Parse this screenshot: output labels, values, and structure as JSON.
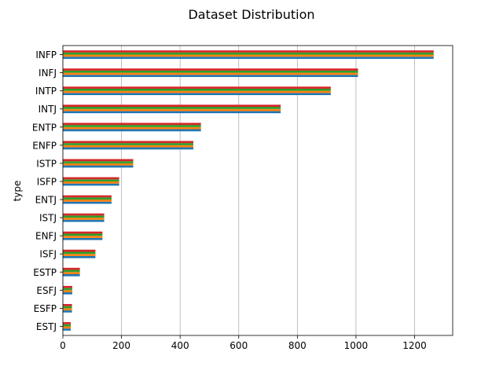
{
  "chart_data": {
    "type": "bar",
    "orientation": "horizontal",
    "title": "Dataset Distribution",
    "xlabel": "",
    "ylabel": "type",
    "categories": [
      "INFP",
      "INFJ",
      "INTP",
      "INTJ",
      "ENTP",
      "ENFP",
      "ISTP",
      "ISFP",
      "ENTJ",
      "ISTJ",
      "ENFJ",
      "ISFJ",
      "ESTP",
      "ESFJ",
      "ESFP",
      "ESTJ"
    ],
    "values": [
      1265,
      1007,
      914,
      743,
      471,
      445,
      240,
      192,
      166,
      141,
      135,
      111,
      58,
      32,
      31,
      27
    ],
    "series_count": 4,
    "series_colors": [
      "#1f77b4",
      "#ff7f0e",
      "#2ca02c",
      "#d62728"
    ],
    "xlim": [
      0,
      1330
    ],
    "xticks": [
      0,
      200,
      400,
      600,
      800,
      1000,
      1200
    ],
    "grid": "x"
  }
}
